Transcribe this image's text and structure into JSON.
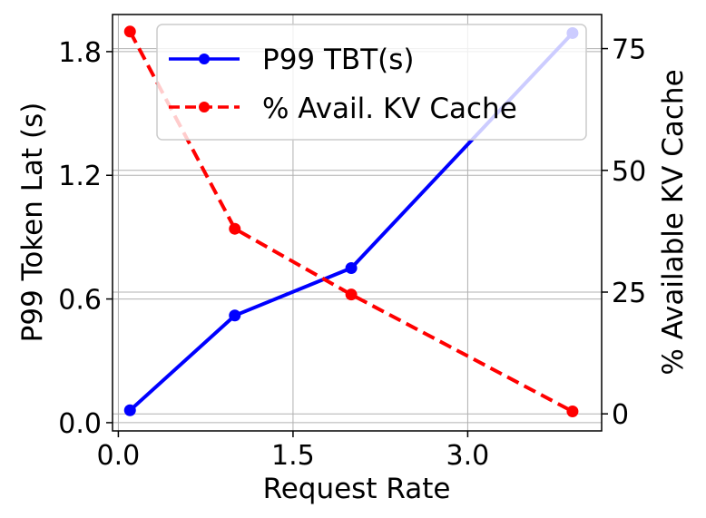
{
  "chart_data": {
    "type": "line",
    "x": [
      0.1,
      1.0,
      2.0,
      3.9
    ],
    "xlabel": "Request Rate",
    "xlim": [
      -0.05,
      4.15
    ],
    "xticks": [
      "0.0",
      "1.5",
      "3.0"
    ],
    "xtick_values": [
      0.0,
      1.5,
      3.0
    ],
    "y_left": {
      "label": "P99 Token Lat (s)",
      "lim": [
        -0.04,
        1.98
      ],
      "ticks": [
        "0.0",
        "0.6",
        "1.2",
        "1.8"
      ],
      "tick_values": [
        0.0,
        0.6,
        1.2,
        1.8
      ]
    },
    "y_right": {
      "label": "% Available KV Cache",
      "lim": [
        -3.5,
        82
      ],
      "ticks": [
        "0",
        "25",
        "50",
        "75"
      ],
      "tick_values": [
        0,
        25,
        50,
        75
      ]
    },
    "series": [
      {
        "name": "P99 TBT(s)",
        "axis": "left",
        "values": [
          0.06,
          0.52,
          0.75,
          1.89
        ],
        "color": "#0000ff",
        "style": "solid"
      },
      {
        "name": "% Avail. KV Cache",
        "axis": "right",
        "values": [
          78.5,
          38.0,
          24.5,
          0.5
        ],
        "color": "#ff0000",
        "style": "dashed"
      }
    ],
    "grid": true,
    "legend": "top-right"
  }
}
